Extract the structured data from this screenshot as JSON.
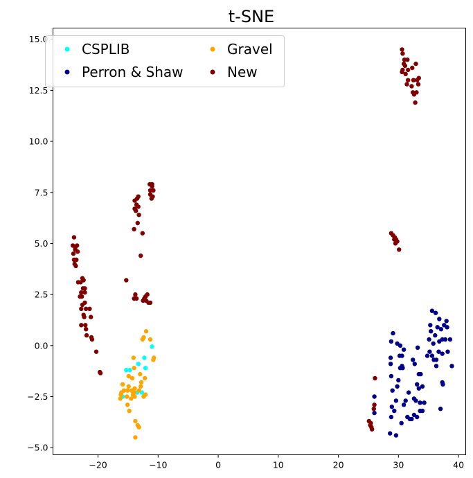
{
  "chart_data": {
    "type": "scatter",
    "title": "t-SNE",
    "xlabel": "",
    "ylabel": "",
    "xlim": [
      -27.5,
      41.2
    ],
    "ylim": [
      -5.35,
      15.55
    ],
    "x_ticks": [
      -20,
      -10,
      0,
      10,
      20,
      30,
      40
    ],
    "y_ticks": [
      -5.0,
      -2.5,
      0.0,
      2.5,
      5.0,
      7.5,
      10.0,
      12.5,
      15.0
    ],
    "x_tick_labels": [
      "−20",
      "−10",
      "0",
      "10",
      "20",
      "30",
      "40"
    ],
    "y_tick_labels": [
      "−5.0",
      "−2.5",
      "0.0",
      "2.5",
      "5.0",
      "7.5",
      "10.0",
      "12.5",
      "15.0"
    ],
    "grid": false,
    "legend_position": "top-left",
    "legend_columns": 2,
    "series": [
      {
        "name": "CSPLIB",
        "color": "#00ffff",
        "points": [
          [
            -15.3,
            -1.2
          ],
          [
            -14.7,
            -1.2
          ],
          [
            -13.3,
            -0.9
          ],
          [
            -12.3,
            -0.6
          ],
          [
            -12.1,
            -1.1
          ],
          [
            -11.0,
            -0.05
          ],
          [
            -13.5,
            -2.3
          ],
          [
            -15.9,
            -2.5
          ],
          [
            -12.7,
            -2.3
          ]
        ]
      },
      {
        "name": "Perron & Shaw",
        "color": "#00008b",
        "points": [
          [
            26.0,
            -2.5
          ],
          [
            26.0,
            -3.3
          ],
          [
            28.6,
            -4.3
          ],
          [
            28.9,
            -3.0
          ],
          [
            29.6,
            -4.4
          ],
          [
            29.0,
            -2.2
          ],
          [
            28.8,
            -1.5
          ],
          [
            28.7,
            -0.9
          ],
          [
            28.7,
            -0.6
          ],
          [
            28.8,
            0.2
          ],
          [
            29.1,
            0.6
          ],
          [
            29.8,
            0.1
          ],
          [
            30.3,
            0.0
          ],
          [
            30.6,
            -0.5
          ],
          [
            30.9,
            -0.2
          ],
          [
            30.3,
            -1.1
          ],
          [
            30.7,
            -1.1
          ],
          [
            30.0,
            -1.7
          ],
          [
            29.8,
            -2.0
          ],
          [
            29.6,
            -2.7
          ],
          [
            29.3,
            -3.2
          ],
          [
            28.8,
            -3.5
          ],
          [
            30.5,
            -3.8
          ],
          [
            30.9,
            -2.9
          ],
          [
            31.2,
            -2.7
          ],
          [
            31.5,
            -3.5
          ],
          [
            31.9,
            -3.6
          ],
          [
            32.2,
            -3.6
          ],
          [
            32.6,
            -3.4
          ],
          [
            33.1,
            -3.5
          ],
          [
            33.6,
            -3.2
          ],
          [
            34.0,
            -3.2
          ],
          [
            33.6,
            -2.8
          ],
          [
            32.9,
            -2.7
          ],
          [
            32.6,
            -2.6
          ],
          [
            31.7,
            -2.3
          ],
          [
            33.1,
            -1.9
          ],
          [
            33.4,
            -2.1
          ],
          [
            34.0,
            -2.0
          ],
          [
            34.3,
            -2.8
          ],
          [
            33.4,
            -1.4
          ],
          [
            33.7,
            -1.4
          ],
          [
            32.7,
            -0.9
          ],
          [
            33.2,
            -0.1
          ],
          [
            32.4,
            -0.7
          ],
          [
            34.8,
            -0.5
          ],
          [
            35.2,
            -0.3
          ],
          [
            35.6,
            -0.5
          ],
          [
            35.9,
            -0.7
          ],
          [
            36.3,
            -0.7
          ],
          [
            36.7,
            -0.3
          ],
          [
            36.8,
            0.2
          ],
          [
            37.3,
            0.3
          ],
          [
            37.3,
            -0.4
          ],
          [
            37.8,
            0.3
          ],
          [
            38.2,
            -0.3
          ],
          [
            38.6,
            0.3
          ],
          [
            38.9,
            -1.0
          ],
          [
            37.3,
            -1.8
          ],
          [
            37.4,
            -1.9
          ],
          [
            37.0,
            -3.1
          ],
          [
            36.3,
            -1.0
          ],
          [
            35.8,
            0.1
          ],
          [
            35.1,
            0.3
          ],
          [
            36.1,
            0.5
          ],
          [
            36.5,
            0.9
          ],
          [
            36.8,
            1.3
          ],
          [
            37.1,
            0.8
          ],
          [
            38.0,
            1.2
          ],
          [
            38.1,
            0.9
          ],
          [
            35.4,
            0.7
          ],
          [
            35.3,
            1.0
          ],
          [
            35.6,
            1.7
          ],
          [
            36.2,
            1.6
          ],
          [
            37.6,
            1.0
          ],
          [
            30.6,
            -1.0
          ],
          [
            30.2,
            -0.5
          ]
        ]
      },
      {
        "name": "Gravel",
        "color": "#ffa500",
        "points": [
          [
            -15.9,
            -1.9
          ],
          [
            -15.7,
            -2.2
          ],
          [
            -16.1,
            -2.3
          ],
          [
            -16.3,
            -2.6
          ],
          [
            -15.2,
            -2.5
          ],
          [
            -15.1,
            -2.2
          ],
          [
            -14.9,
            -2.0
          ],
          [
            -14.5,
            -2.6
          ],
          [
            -14.4,
            -2.2
          ],
          [
            -14.2,
            -2.4
          ],
          [
            -14.0,
            -2.3
          ],
          [
            -13.9,
            -2.1
          ],
          [
            -13.9,
            -2.5
          ],
          [
            -13.2,
            -2.2
          ],
          [
            -12.9,
            -2.0
          ],
          [
            -12.8,
            -1.8
          ],
          [
            -12.4,
            -2.5
          ],
          [
            -12.1,
            -2.4
          ],
          [
            -14.9,
            -1.5
          ],
          [
            -14.3,
            -1.6
          ],
          [
            -13.0,
            -1.4
          ],
          [
            -12.2,
            -1.6
          ],
          [
            -14.1,
            -0.6
          ],
          [
            -14.0,
            -1.1
          ],
          [
            -12.6,
            0.3
          ],
          [
            -12.4,
            0.4
          ],
          [
            -12.0,
            0.7
          ],
          [
            -11.3,
            0.3
          ],
          [
            -10.7,
            -0.6
          ],
          [
            -10.8,
            -0.7
          ],
          [
            -15.1,
            -2.9
          ],
          [
            -14.8,
            -3.2
          ],
          [
            -13.8,
            -3.7
          ],
          [
            -13.4,
            -3.9
          ],
          [
            -13.2,
            -4.0
          ],
          [
            -13.8,
            -4.5
          ],
          [
            -16.2,
            -2.4
          ]
        ]
      },
      {
        "name": "New",
        "color": "#800000",
        "points": [
          [
            -24.0,
            5.3
          ],
          [
            -24.2,
            4.9
          ],
          [
            -23.8,
            4.8
          ],
          [
            -23.5,
            4.9
          ],
          [
            -23.4,
            4.6
          ],
          [
            -23.8,
            4.7
          ],
          [
            -24.1,
            4.5
          ],
          [
            -24.0,
            4.2
          ],
          [
            -23.6,
            4.2
          ],
          [
            -23.9,
            4.0
          ],
          [
            -23.7,
            3.9
          ],
          [
            -23.3,
            3.1
          ],
          [
            -22.9,
            3.1
          ],
          [
            -22.6,
            3.3
          ],
          [
            -22.4,
            3.2
          ],
          [
            -22.2,
            2.8
          ],
          [
            -22.5,
            2.8
          ],
          [
            -22.8,
            2.6
          ],
          [
            -22.2,
            2.6
          ],
          [
            -23.0,
            2.4
          ],
          [
            -22.7,
            2.4
          ],
          [
            -22.2,
            2.1
          ],
          [
            -22.6,
            2.0
          ],
          [
            -22.0,
            1.8
          ],
          [
            -22.8,
            1.8
          ],
          [
            -21.4,
            1.8
          ],
          [
            -22.4,
            1.5
          ],
          [
            -22.3,
            1.4
          ],
          [
            -21.2,
            1.4
          ],
          [
            -22.8,
            1.0
          ],
          [
            -22.1,
            1.0
          ],
          [
            -22.0,
            0.8
          ],
          [
            -21.9,
            0.5
          ],
          [
            -21.1,
            0.4
          ],
          [
            -21.0,
            0.3
          ],
          [
            -20.3,
            -0.3
          ],
          [
            -19.7,
            -1.3
          ],
          [
            -19.6,
            -1.35
          ],
          [
            -15.3,
            3.2
          ],
          [
            -14.0,
            2.3
          ],
          [
            -13.6,
            2.3
          ],
          [
            -13.8,
            2.5
          ],
          [
            -12.3,
            2.3
          ],
          [
            -12.0,
            2.2
          ],
          [
            -11.6,
            2.1
          ],
          [
            -11.3,
            2.1
          ],
          [
            -12.1,
            2.4
          ],
          [
            -11.8,
            2.5
          ],
          [
            -12.5,
            2.2
          ],
          [
            -12.9,
            4.4
          ],
          [
            -12.6,
            5.5
          ],
          [
            -14.0,
            5.7
          ],
          [
            -13.4,
            6.0
          ],
          [
            -13.7,
            6.6
          ],
          [
            -13.2,
            6.4
          ],
          [
            -13.9,
            6.7
          ],
          [
            -13.6,
            6.9
          ],
          [
            -13.3,
            6.8
          ],
          [
            -13.5,
            7.2
          ],
          [
            -13.3,
            7.3
          ],
          [
            -13.9,
            7.1
          ],
          [
            -11.4,
            7.9
          ],
          [
            -11.0,
            7.9
          ],
          [
            -11.3,
            7.6
          ],
          [
            -10.8,
            7.6
          ],
          [
            -11.3,
            7.4
          ],
          [
            -10.9,
            7.3
          ],
          [
            -11.1,
            7.2
          ],
          [
            -11.0,
            7.8
          ],
          [
            25.6,
            -4.1
          ],
          [
            25.4,
            -3.8
          ],
          [
            25.1,
            -3.7
          ],
          [
            25.3,
            -3.9
          ],
          [
            25.5,
            -4.0
          ],
          [
            25.9,
            -3.1
          ],
          [
            26.0,
            -2.9
          ],
          [
            26.1,
            -1.6
          ],
          [
            28.8,
            5.5
          ],
          [
            29.1,
            5.4
          ],
          [
            29.3,
            5.2
          ],
          [
            29.4,
            5.3
          ],
          [
            29.5,
            5.0
          ],
          [
            29.8,
            5.1
          ],
          [
            30.1,
            4.7
          ],
          [
            29.6,
            5.2
          ],
          [
            30.6,
            14.5
          ],
          [
            30.7,
            14.3
          ],
          [
            31.0,
            14.0
          ],
          [
            30.9,
            13.8
          ],
          [
            31.1,
            13.7
          ],
          [
            31.5,
            14.0
          ],
          [
            30.7,
            13.5
          ],
          [
            30.6,
            13.4
          ],
          [
            31.2,
            13.3
          ],
          [
            31.6,
            13.5
          ],
          [
            31.4,
            12.8
          ],
          [
            31.6,
            13.0
          ],
          [
            32.2,
            12.7
          ],
          [
            32.4,
            12.4
          ],
          [
            32.6,
            12.3
          ],
          [
            33.0,
            12.4
          ],
          [
            32.8,
            11.9
          ],
          [
            33.1,
            13.0
          ],
          [
            33.4,
            13.1
          ],
          [
            33.3,
            12.8
          ],
          [
            32.9,
            13.8
          ],
          [
            32.3,
            13.6
          ],
          [
            32.5,
            13.0
          ]
        ]
      }
    ]
  }
}
